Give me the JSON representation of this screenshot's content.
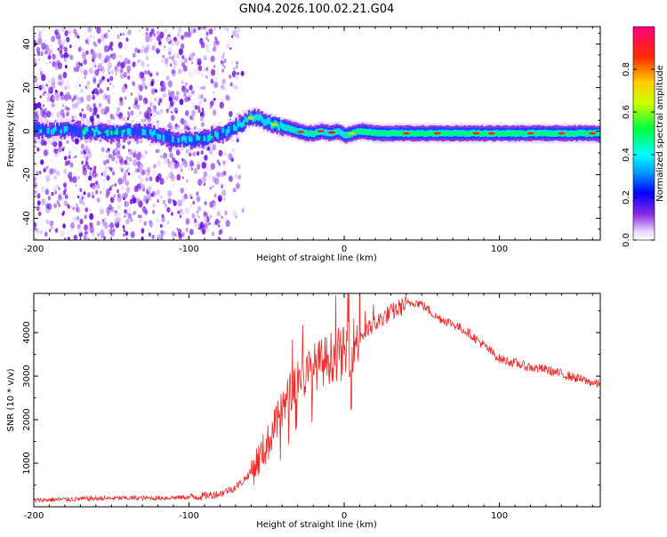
{
  "page": {
    "title": "GN04.2026.100.02.21.G04"
  },
  "chart_data": [
    {
      "type": "heatmap",
      "title": "GN04.2026.100.02.21.G04",
      "xlabel": "Height of straight line (km)",
      "ylabel": "Frequency (Hz)",
      "xlim": [
        -200,
        165
      ],
      "ylim": [
        -50,
        48
      ],
      "xticks": [
        -200,
        -100,
        0,
        100
      ],
      "yticks": [
        -40,
        -20,
        0,
        20,
        40
      ],
      "ridge": {
        "x": [
          -200,
          -190,
          -180,
          -170,
          -160,
          -150,
          -140,
          -130,
          -120,
          -110,
          -100,
          -90,
          -80,
          -70,
          -62,
          -56,
          -50,
          -45,
          -40,
          -35,
          -30,
          -25,
          -20,
          -15,
          -10,
          -5,
          0,
          5,
          10,
          20,
          40,
          60,
          80,
          100,
          120,
          140,
          165
        ],
        "y": [
          1,
          0,
          1,
          0,
          0,
          -1,
          0,
          0,
          -2,
          -4,
          -4,
          -3,
          -1,
          2,
          6,
          6,
          4,
          3,
          2,
          1,
          0,
          -1,
          -1,
          0,
          -1,
          0,
          -2,
          -1,
          0,
          -1,
          -1,
          -1,
          -1,
          -1,
          -1,
          -1,
          -1
        ]
      },
      "colorbar": {
        "label": "Normalized spectral amplitude",
        "range": [
          0,
          1
        ],
        "ticks": [
          "0.0",
          "0.2",
          "0.4",
          "0.6",
          "0.8"
        ],
        "tick_values": [
          0,
          0.2,
          0.4,
          0.6,
          0.8
        ]
      }
    },
    {
      "type": "line",
      "xlabel": "Height of straight line (km)",
      "ylabel": "SNR (10 * v/v)",
      "xlim": [
        -200,
        165
      ],
      "ylim": [
        0,
        4900
      ],
      "xticks": [
        -200,
        -100,
        0,
        100
      ],
      "yticks": [
        1000,
        2000,
        3000,
        4000
      ],
      "series": [
        {
          "name": "SNR",
          "color": "#ee2a2a",
          "x": [
            -200,
            -180,
            -160,
            -140,
            -120,
            -100,
            -90,
            -80,
            -70,
            -65,
            -60,
            -55,
            -50,
            -45,
            -40,
            -35,
            -30,
            -25,
            -20,
            -15,
            -10,
            -5,
            0,
            5,
            10,
            15,
            20,
            25,
            30,
            35,
            40,
            45,
            50,
            55,
            60,
            70,
            80,
            90,
            100,
            110,
            120,
            130,
            140,
            150,
            160,
            165
          ],
          "values": [
            150,
            170,
            190,
            200,
            200,
            220,
            250,
            300,
            450,
            600,
            800,
            1100,
            1400,
            1800,
            2200,
            2600,
            3000,
            3000,
            3200,
            3300,
            3400,
            3500,
            3500,
            3700,
            3900,
            4050,
            4200,
            4350,
            4450,
            4550,
            4650,
            4700,
            4650,
            4500,
            4350,
            4200,
            4000,
            3700,
            3400,
            3300,
            3200,
            3150,
            3050,
            2950,
            2850,
            2800
          ]
        }
      ]
    }
  ]
}
